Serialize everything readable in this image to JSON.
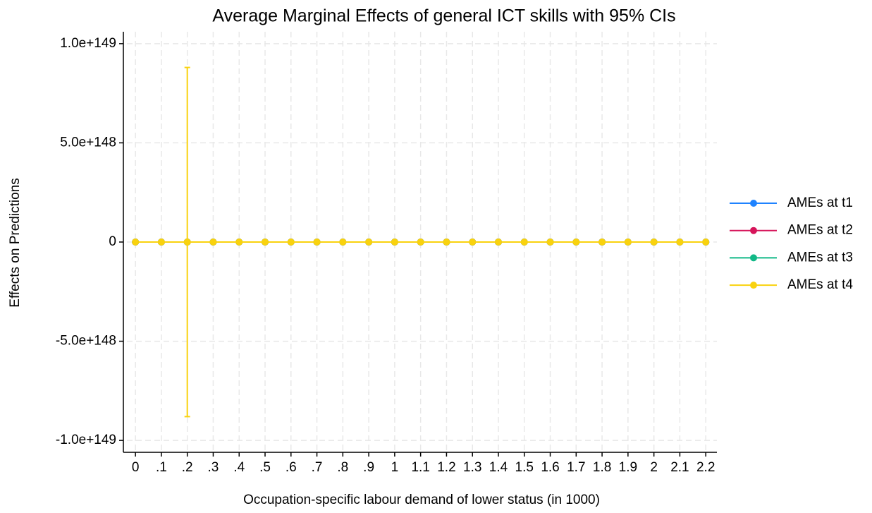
{
  "chart_data": {
    "type": "line",
    "title": "Average Marginal Effects of general ICT skills with 95% CIs",
    "xlabel": "Occupation-specific labour demand of lower status (in 1000)",
    "ylabel": "Effects on Predictions",
    "x": [
      0,
      0.1,
      0.2,
      0.3,
      0.4,
      0.5,
      0.6,
      0.7,
      0.8,
      0.9,
      1,
      1.1,
      1.2,
      1.3,
      1.4,
      1.5,
      1.6,
      1.7,
      1.8,
      1.9,
      2,
      2.1,
      2.2
    ],
    "series": [
      {
        "name": "AMEs at t1",
        "color": "#1f83ff",
        "values": [
          0,
          0,
          0,
          0,
          0,
          0,
          0,
          0,
          0,
          0,
          0,
          0,
          0,
          0,
          0,
          0,
          0,
          0,
          0,
          0,
          0,
          0,
          0
        ]
      },
      {
        "name": "AMEs at t2",
        "color": "#d6145a",
        "values": [
          0,
          0,
          0,
          0,
          0,
          0,
          0,
          0,
          0,
          0,
          0,
          0,
          0,
          0,
          0,
          0,
          0,
          0,
          0,
          0,
          0,
          0,
          0
        ]
      },
      {
        "name": "AMEs at t3",
        "color": "#12b987",
        "values": [
          0,
          0,
          0,
          0,
          0,
          0,
          0,
          0,
          0,
          0,
          0,
          0,
          0,
          0,
          0,
          0,
          0,
          0,
          0,
          0,
          0,
          0,
          0
        ]
      },
      {
        "name": "AMEs at t4",
        "color": "#f9d20e",
        "values": [
          0,
          0,
          0,
          0,
          0,
          0,
          0,
          0,
          0,
          0,
          0,
          0,
          0,
          0,
          0,
          0,
          0,
          0,
          0,
          0,
          0,
          0,
          0
        ],
        "errors": [
          0,
          0,
          8.8e+148,
          0,
          0,
          0,
          0,
          0,
          0,
          0,
          0,
          0,
          0,
          0,
          0,
          0,
          0,
          0,
          0,
          0,
          0,
          0,
          0
        ]
      }
    ],
    "xlim": [
      -0.033,
      2.243
    ],
    "ylim": [
      -1.06e+149,
      1.06e+149
    ],
    "xticks": [
      0,
      {
        "value": 0.1,
        "label": ".1"
      },
      {
        "value": 0.2,
        "label": ".2"
      },
      {
        "value": 0.3,
        "label": ".3"
      },
      {
        "value": 0.4,
        "label": ".4"
      },
      {
        "value": 0.5,
        "label": ".5"
      },
      {
        "value": 0.6,
        "label": ".6"
      },
      {
        "value": 0.7,
        "label": ".7"
      },
      {
        "value": 0.8,
        "label": ".8"
      },
      {
        "value": 0.9,
        "label": ".9"
      },
      1,
      1.1,
      1.2,
      1.3,
      1.4,
      1.5,
      1.6,
      1.7,
      1.8,
      1.9,
      2,
      2.1,
      2.2
    ],
    "yticks": [
      {
        "value": -1e+149,
        "label": "-1.0e+149"
      },
      {
        "value": -5e+148,
        "label": "-5.0e+148"
      },
      0,
      {
        "value": 5e+148,
        "label": "5.0e+148"
      },
      {
        "value": 1e+149,
        "label": "1.0e+149"
      }
    ],
    "grid": true,
    "legend": "right"
  }
}
